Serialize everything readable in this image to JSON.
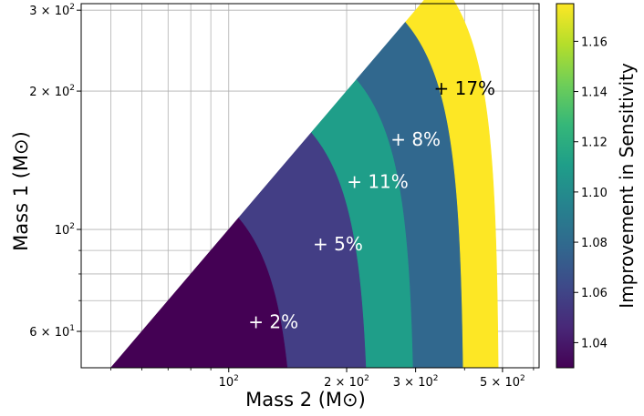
{
  "chart_data": {
    "type": "heatmap",
    "xlabel": "Mass 2 (M⊙)",
    "ylabel": "Mass 1 (M⊙)",
    "x_scale": "log",
    "y_scale": "log",
    "xlim": [
      42,
      620
    ],
    "ylim": [
      50,
      310
    ],
    "grid": true,
    "x_major_ticks": [
      {
        "value": 100,
        "base": "10",
        "exp": "2"
      },
      {
        "value": 200,
        "base": "2 × 10",
        "exp": "2"
      },
      {
        "value": 300,
        "base": "3 × 10",
        "exp": "2"
      },
      {
        "value": 500,
        "base": "5 × 10",
        "exp": "2"
      }
    ],
    "y_major_ticks": [
      {
        "value": 60,
        "base": "6 × 10",
        "exp": "1"
      },
      {
        "value": 100,
        "base": "10",
        "exp": "2"
      },
      {
        "value": 200,
        "base": "2 × 10",
        "exp": "2"
      },
      {
        "value": 300,
        "base": "3 × 10",
        "exp": "2"
      }
    ],
    "x_minor_ticks": [
      50,
      60,
      70,
      80,
      90,
      400,
      600
    ],
    "y_minor_ticks": [
      70,
      80,
      90
    ],
    "bands": [
      {
        "label": "+ 2%",
        "value": 1.02,
        "color": "#440154",
        "label_color": "#ffffff",
        "label_x": 130,
        "label_y": 63
      },
      {
        "label": "+ 5%",
        "value": 1.05,
        "color": "#433e85",
        "label_color": "#ffffff",
        "label_x": 190,
        "label_y": 93
      },
      {
        "label": "+ 11%",
        "value": 1.11,
        "color": "#1f9e89",
        "label_color": "#ffffff",
        "label_x": 240,
        "label_y": 127
      },
      {
        "label": "+ 8%",
        "value": 1.08,
        "color": "#31688e",
        "label_color": "#ffffff",
        "label_x": 300,
        "label_y": 157
      },
      {
        "label": "+ 17%",
        "value": 1.17,
        "color": "#fde725",
        "label_color": "#000000",
        "label_x": 400,
        "label_y": 203
      }
    ],
    "boundaries": [
      150,
      230,
      300,
      400,
      490
    ],
    "colorbar": {
      "label": "Improvement in Sensitivity",
      "range": [
        1.03,
        1.175
      ],
      "ticks": [
        "1.04",
        "1.06",
        "1.08",
        "1.10",
        "1.12",
        "1.14",
        "1.16"
      ],
      "colors": [
        "#440154",
        "#482878",
        "#3e4989",
        "#31688e",
        "#26828e",
        "#1f9e89",
        "#35b779",
        "#6ece58",
        "#b5de2b",
        "#fde725"
      ]
    }
  }
}
